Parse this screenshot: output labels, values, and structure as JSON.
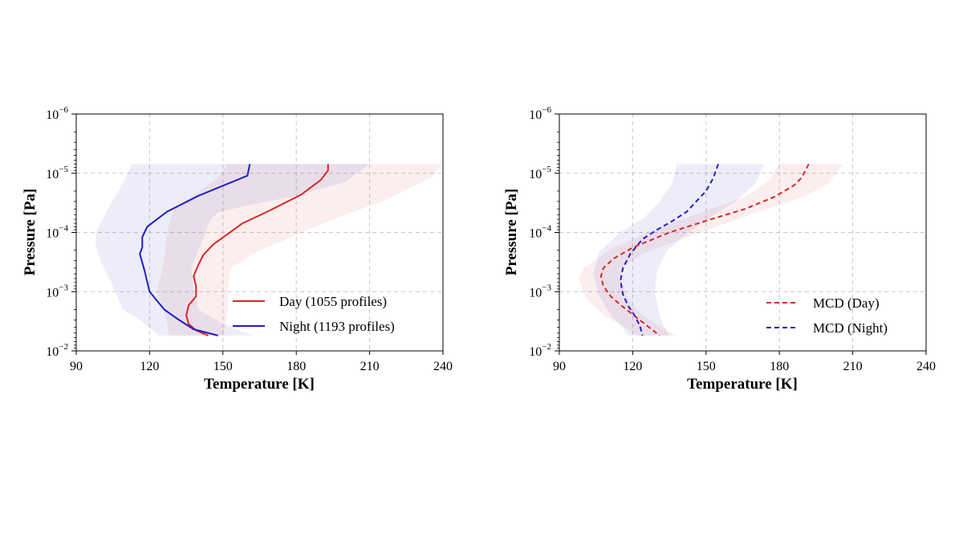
{
  "chart_data": [
    {
      "type": "line",
      "xlabel": "Temperature [K]",
      "ylabel": "Pressure [Pa]",
      "xlim": [
        90,
        240
      ],
      "xticks": [
        "90",
        "120",
        "150",
        "180",
        "210",
        "240"
      ],
      "yscale": "log",
      "ylim": [
        0.01,
        1e-06
      ],
      "yticks": [
        {
          "base": "10",
          "exp": "−6",
          "value": 1e-06
        },
        {
          "base": "10",
          "exp": "−5",
          "value": 1e-05
        },
        {
          "base": "10",
          "exp": "−4",
          "value": 0.0001
        },
        {
          "base": "10",
          "exp": "−3",
          "value": 0.001
        },
        {
          "base": "10",
          "exp": "−2",
          "value": 0.01
        }
      ],
      "grid": true,
      "legend_position": "bottom-right",
      "series": [
        {
          "name": "Day (1055 profiles)",
          "color": "#d62728",
          "style": "solid",
          "points": [
            [
              193,
              7e-06
            ],
            [
              193,
              9e-06
            ],
            [
              190,
              1.3e-05
            ],
            [
              182,
              2.3e-05
            ],
            [
              168,
              4.5e-05
            ],
            [
              158,
              7e-05
            ],
            [
              146,
              0.00016
            ],
            [
              142,
              0.00024
            ],
            [
              140,
              0.00035
            ],
            [
              138,
              0.00055
            ],
            [
              139,
              0.0008
            ],
            [
              139,
              0.0012
            ],
            [
              136,
              0.0017
            ],
            [
              135,
              0.0025
            ],
            [
              136,
              0.0035
            ],
            [
              139,
              0.0045
            ],
            [
              144,
              0.0055
            ]
          ],
          "band_low": [
            [
              152,
              7e-06
            ],
            [
              148,
              1.2e-05
            ],
            [
              130,
              4e-05
            ],
            [
              127,
              0.0001
            ],
            [
              126,
              0.0003
            ],
            [
              123,
              0.001
            ],
            [
              127,
              0.003
            ],
            [
              128,
              0.0055
            ]
          ],
          "band_high": [
            [
              240,
              7e-06
            ],
            [
              235,
              1.2e-05
            ],
            [
              215,
              3e-05
            ],
            [
              195,
              6e-05
            ],
            [
              185,
              9e-05
            ],
            [
              165,
              0.0002
            ],
            [
              153,
              0.0004
            ],
            [
              152,
              0.0009
            ],
            [
              152,
              0.002
            ],
            [
              151,
              0.004
            ],
            [
              150,
              0.0055
            ]
          ]
        },
        {
          "name": "Night (1193 profiles)",
          "color": "#1f1fbf",
          "style": "solid",
          "points": [
            [
              161,
              7e-06
            ],
            [
              160,
              1.1e-05
            ],
            [
              140,
              2.4e-05
            ],
            [
              127,
              4.5e-05
            ],
            [
              119,
              8e-05
            ],
            [
              117,
              0.00012
            ],
            [
              117,
              0.00018
            ],
            [
              116,
              0.00023
            ],
            [
              118,
              0.00045
            ],
            [
              120,
              0.001
            ],
            [
              126,
              0.002
            ],
            [
              132,
              0.003
            ],
            [
              138,
              0.0043
            ],
            [
              148,
              0.0055
            ]
          ],
          "band_low": [
            [
              113,
              7e-06
            ],
            [
              109,
              1.5e-05
            ],
            [
              103,
              4e-05
            ],
            [
              98,
              0.0001
            ],
            [
              98,
              0.00017
            ],
            [
              100,
              0.0003
            ],
            [
              106,
              0.001
            ],
            [
              109,
              0.002
            ],
            [
              116,
              0.003
            ],
            [
              124,
              0.0055
            ]
          ],
          "band_high": [
            [
              210,
              7e-06
            ],
            [
              200,
              1.4e-05
            ],
            [
              178,
              2.5e-05
            ],
            [
              160,
              3.5e-05
            ],
            [
              148,
              4.6e-05
            ],
            [
              145,
              6e-05
            ],
            [
              140,
              0.0002
            ],
            [
              137,
              0.0004
            ],
            [
              138,
              0.001
            ],
            [
              140,
              0.002
            ],
            [
              150,
              0.0035
            ],
            [
              162,
              0.0055
            ]
          ]
        }
      ]
    },
    {
      "type": "line",
      "xlabel": "Temperature [K]",
      "ylabel": "Pressure [Pa]",
      "xlim": [
        90,
        240
      ],
      "xticks": [
        "90",
        "120",
        "150",
        "180",
        "210",
        "240"
      ],
      "yscale": "log",
      "ylim": [
        0.01,
        1e-06
      ],
      "yticks": [
        {
          "base": "10",
          "exp": "−6",
          "value": 1e-06
        },
        {
          "base": "10",
          "exp": "−5",
          "value": 1e-05
        },
        {
          "base": "10",
          "exp": "−4",
          "value": 0.0001
        },
        {
          "base": "10",
          "exp": "−3",
          "value": 0.001
        },
        {
          "base": "10",
          "exp": "−2",
          "value": 0.01
        }
      ],
      "grid": true,
      "legend_position": "bottom-right",
      "series": [
        {
          "name": "MCD (Day)",
          "color": "#d62728",
          "style": "dashed",
          "points": [
            [
              192,
              7e-06
            ],
            [
              189,
              1.2e-05
            ],
            [
              186,
              1.6e-05
            ],
            [
              178,
              2.5e-05
            ],
            [
              166,
              4e-05
            ],
            [
              152,
              6e-05
            ],
            [
              135,
              0.0001
            ],
            [
              120,
              0.00018
            ],
            [
              112,
              0.00028
            ],
            [
              108,
              0.0004
            ],
            [
              107,
              0.00055
            ],
            [
              108,
              0.0008
            ],
            [
              111,
              0.0012
            ],
            [
              116,
              0.0018
            ],
            [
              121,
              0.0026
            ],
            [
              126,
              0.0038
            ],
            [
              131,
              0.0055
            ]
          ],
          "band_low": [
            [
              180,
              7e-06
            ],
            [
              176,
              1.3e-05
            ],
            [
              166,
              2.5e-05
            ],
            [
              152,
              4e-05
            ],
            [
              132,
              8e-05
            ],
            [
              112,
              0.00018
            ],
            [
              100,
              0.0004
            ],
            [
              98,
              0.0006
            ],
            [
              101,
              0.0013
            ],
            [
              108,
              0.0025
            ],
            [
              117,
              0.004
            ],
            [
              122,
              0.0055
            ]
          ],
          "band_high": [
            [
              206,
              7e-06
            ],
            [
              200,
              1.5e-05
            ],
            [
              190,
              2.5e-05
            ],
            [
              175,
              4e-05
            ],
            [
              158,
              7e-05
            ],
            [
              140,
              0.00013
            ],
            [
              125,
              0.00022
            ],
            [
              117,
              0.00035
            ],
            [
              115,
              0.0006
            ],
            [
              118,
              0.0013
            ],
            [
              124,
              0.0025
            ],
            [
              132,
              0.004
            ],
            [
              138,
              0.0055
            ]
          ]
        },
        {
          "name": "MCD (Night)",
          "color": "#1f1fbf",
          "style": "dashed",
          "points": [
            [
              155,
              7e-06
            ],
            [
              153,
              1.2e-05
            ],
            [
              150,
              2e-05
            ],
            [
              146,
              3e-05
            ],
            [
              142,
              4.5e-05
            ],
            [
              136,
              6.5e-05
            ],
            [
              130,
              9e-05
            ],
            [
              124,
              0.00013
            ],
            [
              119,
              0.00023
            ],
            [
              116,
              0.0004
            ],
            [
              115,
              0.00065
            ],
            [
              116,
              0.0011
            ],
            [
              118,
              0.0017
            ],
            [
              121,
              0.0026
            ],
            [
              123,
              0.0038
            ],
            [
              124,
              0.0055
            ]
          ],
          "band_low": [
            [
              138,
              7e-06
            ],
            [
              136,
              1.5e-05
            ],
            [
              131,
              3e-05
            ],
            [
              125,
              5.5e-05
            ],
            [
              115,
              0.0001
            ],
            [
              106,
              0.00022
            ],
            [
              104,
              0.0005
            ],
            [
              106,
              0.0011
            ],
            [
              111,
              0.0025
            ],
            [
              116,
              0.004
            ],
            [
              118,
              0.0055
            ]
          ],
          "band_high": [
            [
              174,
              7e-06
            ],
            [
              170,
              1.5e-05
            ],
            [
              162,
              3e-05
            ],
            [
              152,
              5.5e-05
            ],
            [
              143,
              0.0001
            ],
            [
              134,
              0.0002
            ],
            [
              130,
              0.00045
            ],
            [
              129,
              0.001
            ],
            [
              131,
              0.0025
            ],
            [
              133,
              0.004
            ],
            [
              135,
              0.0055
            ]
          ]
        }
      ]
    }
  ]
}
